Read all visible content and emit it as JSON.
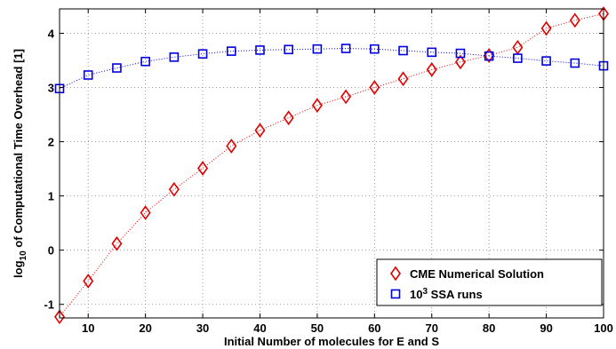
{
  "chart_data": {
    "type": "line",
    "xlabel": "Initial Number of molecules for E and S",
    "ylabel_prefix": "log",
    "ylabel_sub": "10",
    "ylabel_rest": " of Computational Time Overhead [1]",
    "xlim": [
      5,
      100
    ],
    "ylim": [
      -1.25,
      4.45
    ],
    "xticks": [
      10,
      20,
      30,
      40,
      50,
      60,
      70,
      80,
      90,
      100
    ],
    "yticks": [
      -1,
      0,
      1,
      2,
      3,
      4
    ],
    "grid": true,
    "legend_position": "bottom-right",
    "x": [
      5,
      10,
      15,
      20,
      25,
      30,
      35,
      40,
      45,
      50,
      55,
      60,
      65,
      70,
      75,
      80,
      85,
      90,
      95,
      100
    ],
    "series": [
      {
        "name": "CME Numerical Solution",
        "marker": "diamond",
        "color": "#e00000",
        "values": [
          -1.23,
          -0.57,
          0.12,
          0.69,
          1.12,
          1.51,
          1.92,
          2.21,
          2.44,
          2.67,
          2.83,
          3.0,
          3.16,
          3.33,
          3.47,
          3.59,
          3.74,
          4.09,
          4.24,
          4.36
        ]
      },
      {
        "name_base": "10",
        "name_sup": "3",
        "name_rest": " SSA runs",
        "marker": "square",
        "color": "#0000e0",
        "values": [
          2.98,
          3.23,
          3.36,
          3.48,
          3.56,
          3.62,
          3.67,
          3.69,
          3.7,
          3.71,
          3.72,
          3.71,
          3.68,
          3.65,
          3.63,
          3.58,
          3.54,
          3.49,
          3.45,
          3.4
        ]
      }
    ]
  }
}
